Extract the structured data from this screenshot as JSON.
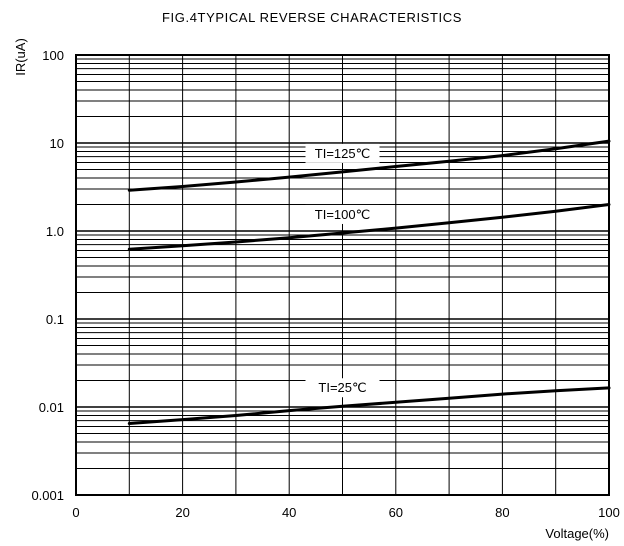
{
  "chart_data": {
    "type": "line",
    "title": "FIG.4TYPICAL REVERSE CHARACTERISTICS",
    "xlabel": "Voltage(%)",
    "ylabel": "IR(uA)",
    "xlim": [
      0,
      100
    ],
    "ylim": [
      0.001,
      100
    ],
    "yscale": "log",
    "grid": true,
    "x_ticks": [
      {
        "value": 0,
        "label": "0"
      },
      {
        "value": 20,
        "label": "20"
      },
      {
        "value": 40,
        "label": "40"
      },
      {
        "value": 60,
        "label": "60"
      },
      {
        "value": 80,
        "label": "80"
      },
      {
        "value": 100,
        "label": "100"
      }
    ],
    "y_ticks": [
      {
        "value": 100,
        "label": "100"
      },
      {
        "value": 10,
        "label": "10"
      },
      {
        "value": 1,
        "label": "1.0"
      },
      {
        "value": 0.1,
        "label": "0.1"
      },
      {
        "value": 0.01,
        "label": "0.01"
      },
      {
        "value": 0.001,
        "label": "0.001"
      }
    ],
    "series": [
      {
        "name": "TI=125℃",
        "x": [
          10,
          20,
          30,
          40,
          50,
          60,
          70,
          80,
          90,
          100
        ],
        "y": [
          2.9,
          3.2,
          3.6,
          4.1,
          4.7,
          5.4,
          6.2,
          7.2,
          8.6,
          10.5
        ]
      },
      {
        "name": "TI=100℃",
        "x": [
          10,
          20,
          30,
          40,
          50,
          60,
          70,
          80,
          90,
          100
        ],
        "y": [
          0.62,
          0.68,
          0.75,
          0.84,
          0.95,
          1.08,
          1.24,
          1.43,
          1.68,
          2.0
        ]
      },
      {
        "name": "TI=25℃",
        "x": [
          10,
          20,
          30,
          40,
          50,
          60,
          70,
          80,
          90,
          100
        ],
        "y": [
          0.0065,
          0.0072,
          0.008,
          0.0091,
          0.0102,
          0.0113,
          0.0126,
          0.014,
          0.0153,
          0.0165
        ]
      }
    ]
  }
}
